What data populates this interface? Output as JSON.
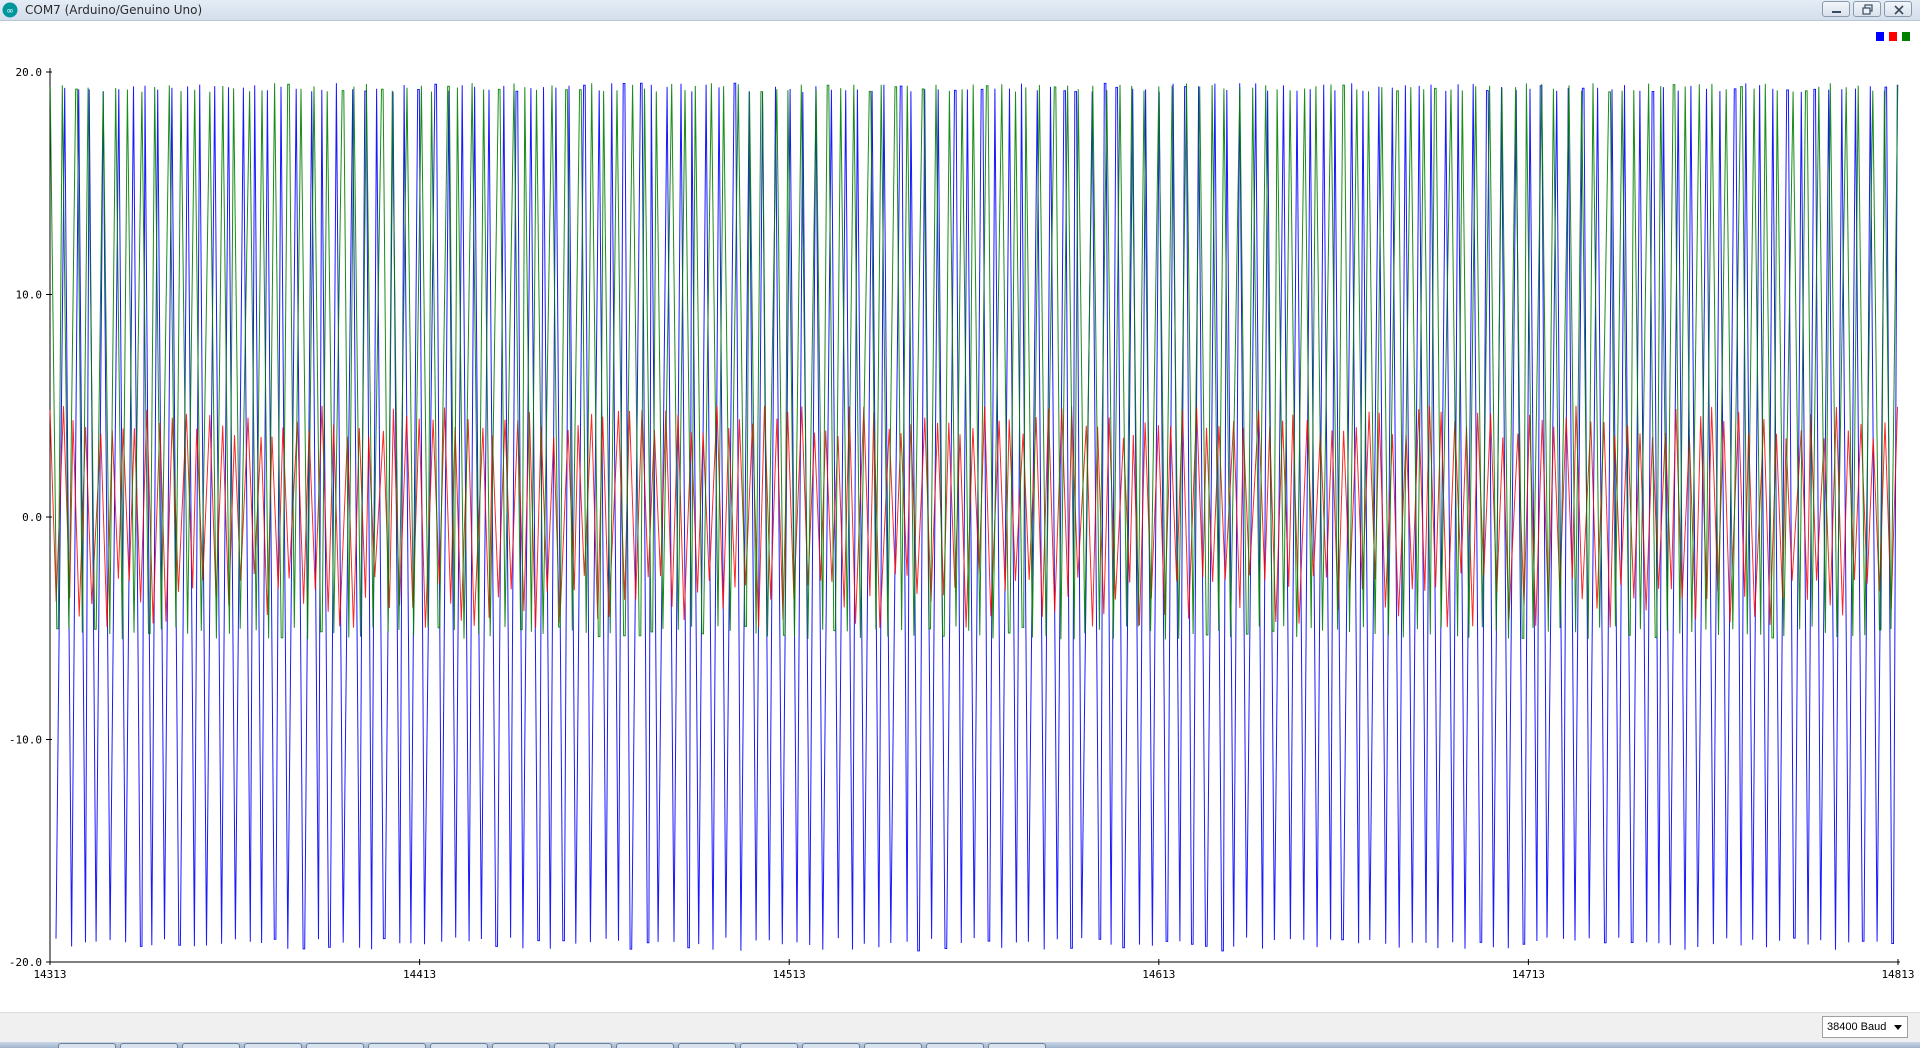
{
  "window": {
    "title": "COM7 (Arduino/Genuino Uno)",
    "icon": "arduino-icon",
    "controls": [
      "minimize-icon",
      "restore-icon",
      "close-icon"
    ]
  },
  "legend": {
    "colors": [
      "#0000ff",
      "#ff0000",
      "#008000"
    ]
  },
  "chart_data": {
    "type": "line",
    "ylim": [
      -20,
      20
    ],
    "y_ticks": [
      "20.0",
      "10.0",
      "0.0",
      "-10.0",
      "-20.0"
    ],
    "xlim": [
      14313,
      14813
    ],
    "x_ticks": [
      "14313",
      "14413",
      "14513",
      "14613",
      "14713",
      "14813"
    ],
    "series": [
      {
        "color": "#0000ff",
        "min": -19.5,
        "max": 19.5,
        "cycles": 135
      },
      {
        "color": "#ff0000",
        "min": -5.0,
        "max": 5.0,
        "cycles": 150
      },
      {
        "color": "#008000",
        "min": -5.5,
        "max": 19.5,
        "cycles": 140
      }
    ]
  },
  "footer": {
    "baud_rate": "38400 Baud"
  },
  "taskbar": {
    "buttons": 16
  }
}
